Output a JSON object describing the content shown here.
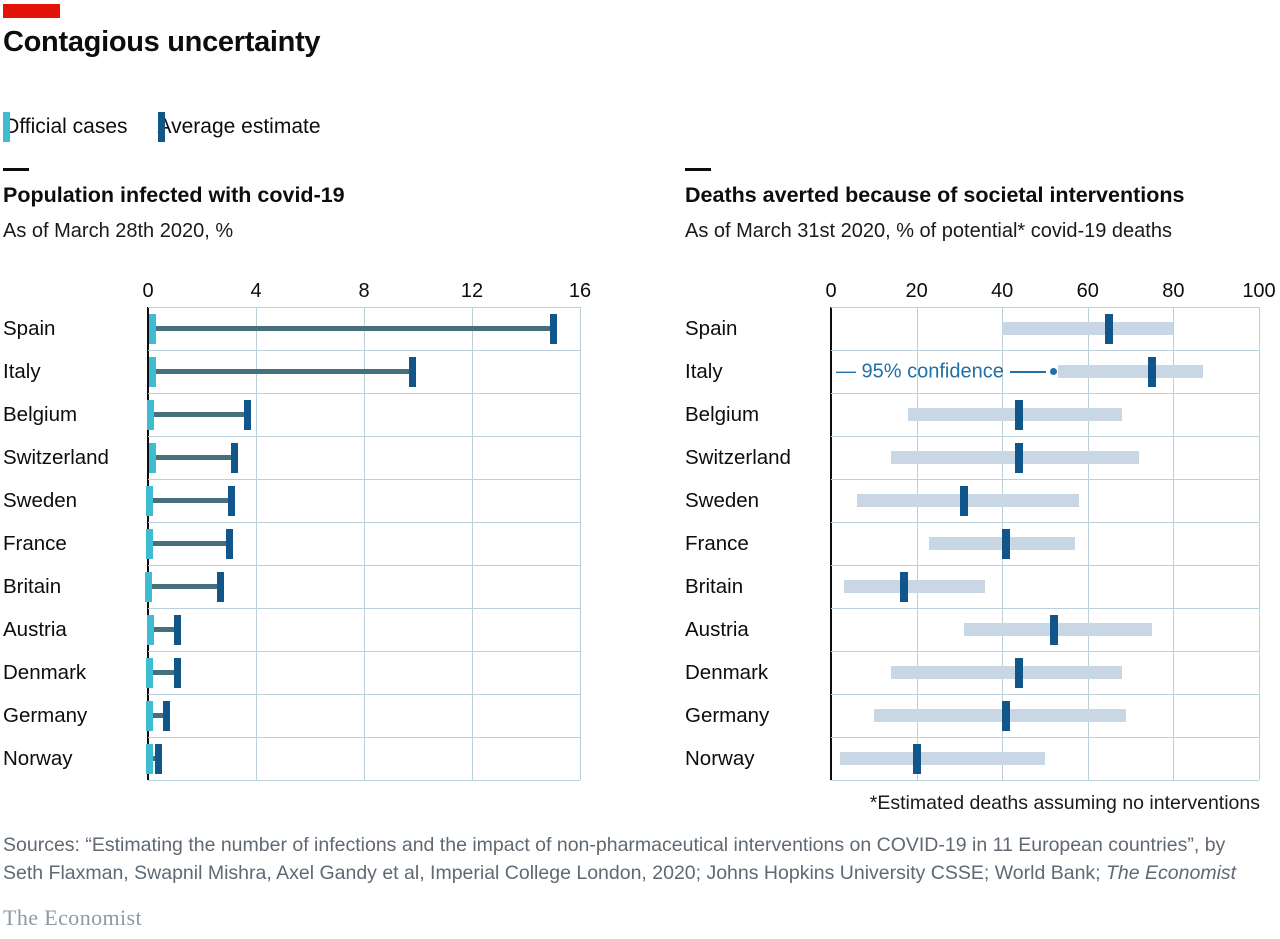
{
  "header": {
    "title": "Contagious uncertainty"
  },
  "legend": {
    "official_label": "Official cases",
    "estimate_label": "Average estimate"
  },
  "colors": {
    "red": "#E3120B",
    "official": "#3EBCD2",
    "estimate": "#10568A",
    "connector": "#47707E",
    "band": "#C9D7E4",
    "grid": "#BCD0DA",
    "annotation": "#1F6FA8"
  },
  "chart_data": [
    {
      "type": "scatter",
      "title": "Population infected with covid-19",
      "subtitle": "As of March 28th 2020, %",
      "categories": [
        "Spain",
        "Italy",
        "Belgium",
        "Switzerland",
        "Sweden",
        "France",
        "Britain",
        "Austria",
        "Denmark",
        "Germany",
        "Norway"
      ],
      "series": [
        {
          "name": "Official cases",
          "values": [
            0.16,
            0.15,
            0.08,
            0.16,
            0.04,
            0.06,
            0.03,
            0.09,
            0.04,
            0.07,
            0.07
          ]
        },
        {
          "name": "Average estimate",
          "values": [
            15.0,
            9.8,
            3.7,
            3.2,
            3.1,
            3.0,
            2.7,
            1.1,
            1.1,
            0.7,
            0.4
          ]
        }
      ],
      "xlabel": "",
      "ylabel": "",
      "xlim": [
        0,
        16
      ],
      "xticks": [
        0,
        4,
        8,
        12,
        16
      ],
      "grid": true,
      "legend_position": "top"
    },
    {
      "type": "scatter",
      "title": "Deaths averted because of societal interventions",
      "subtitle": "As of March 31st 2020, % of potential* covid-19 deaths",
      "categories": [
        "Spain",
        "Italy",
        "Belgium",
        "Switzerland",
        "Sweden",
        "France",
        "Britain",
        "Austria",
        "Denmark",
        "Germany",
        "Norway"
      ],
      "series": [
        {
          "name": "Average estimate",
          "values": [
            65,
            75,
            44,
            44,
            31,
            41,
            17,
            52,
            44,
            41,
            20
          ]
        },
        {
          "name": "95% confidence low",
          "values": [
            40,
            53,
            18,
            14,
            6,
            23,
            3,
            31,
            14,
            10,
            2
          ]
        },
        {
          "name": "95% confidence high",
          "values": [
            80,
            87,
            68,
            72,
            58,
            57,
            36,
            75,
            68,
            69,
            50
          ]
        }
      ],
      "xlabel": "",
      "ylabel": "",
      "xlim": [
        0,
        100
      ],
      "xticks": [
        0,
        20,
        40,
        60,
        80,
        100
      ],
      "grid": true,
      "annotation": "95% confidence",
      "annotation_category": "Italy"
    }
  ],
  "footnote": "*Estimated deaths assuming no interventions",
  "sources": {
    "text": "Sources: “Estimating the number of infections and the impact of non-pharmaceutical interventions on COVID-19 in 11 European countries”, by Seth Flaxman, Swapnil Mishra, Axel Gandy et al, Imperial College London, 2020; Johns Hopkins University CSSE; World Bank; ",
    "italic": "The Economist"
  },
  "footer": {
    "logo": "The Economist"
  }
}
